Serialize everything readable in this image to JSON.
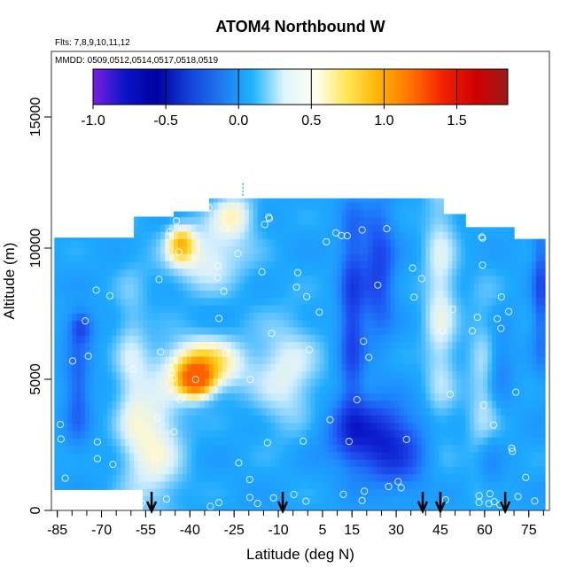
{
  "chart_data": {
    "type": "heatmap",
    "title": "ATOM4 Northbound W",
    "annotations": {
      "flights": "Flts: 7,8,9,10,11,12",
      "dates": "MMDD: 0509,0512,0514,0517,0518,0519"
    },
    "xlabel": "Latitude (deg N)",
    "ylabel": "Altitude (m)",
    "xlim": [
      -87,
      82
    ],
    "ylim": [
      0,
      17500
    ],
    "x_tick_labels": [
      "-85",
      "-70",
      "-55",
      "-40",
      "-25",
      "-10",
      "5",
      "15",
      "30",
      "45",
      "60",
      "75"
    ],
    "x_tick_values": [
      -85,
      -70,
      -55,
      -40,
      -25,
      -10,
      5,
      15,
      30,
      45,
      60,
      75
    ],
    "y_tick_labels": [
      "0",
      "5000",
      "10000",
      "15000"
    ],
    "y_tick_values": [
      0,
      5000,
      10000,
      15000
    ],
    "colorbar": {
      "range": [
        -1.0,
        1.85
      ],
      "tick_labels": [
        "-1.0",
        "-0.5",
        "0.0",
        "0.5",
        "1.0",
        "1.5"
      ],
      "tick_values": [
        -1.0,
        -0.5,
        0.0,
        0.5,
        1.0,
        1.5
      ],
      "colors": [
        "#7b1fe0",
        "#0a14c8",
        "#0000a0",
        "#1240d8",
        "#1e78f0",
        "#1eb4ff",
        "#dff6ff",
        "#fffef0",
        "#ffe650",
        "#ffb000",
        "#ff7000",
        "#f02000",
        "#d00000",
        "#9a1a1a"
      ]
    },
    "arrow_latitudes": [
      -53,
      -8.5,
      39,
      45,
      67
    ],
    "colors": {
      "low": "#1e50f0",
      "background": "#1eaaff",
      "pale": "#d6f0ff",
      "warm": "#ffd830",
      "hot": "#ff6000"
    }
  }
}
